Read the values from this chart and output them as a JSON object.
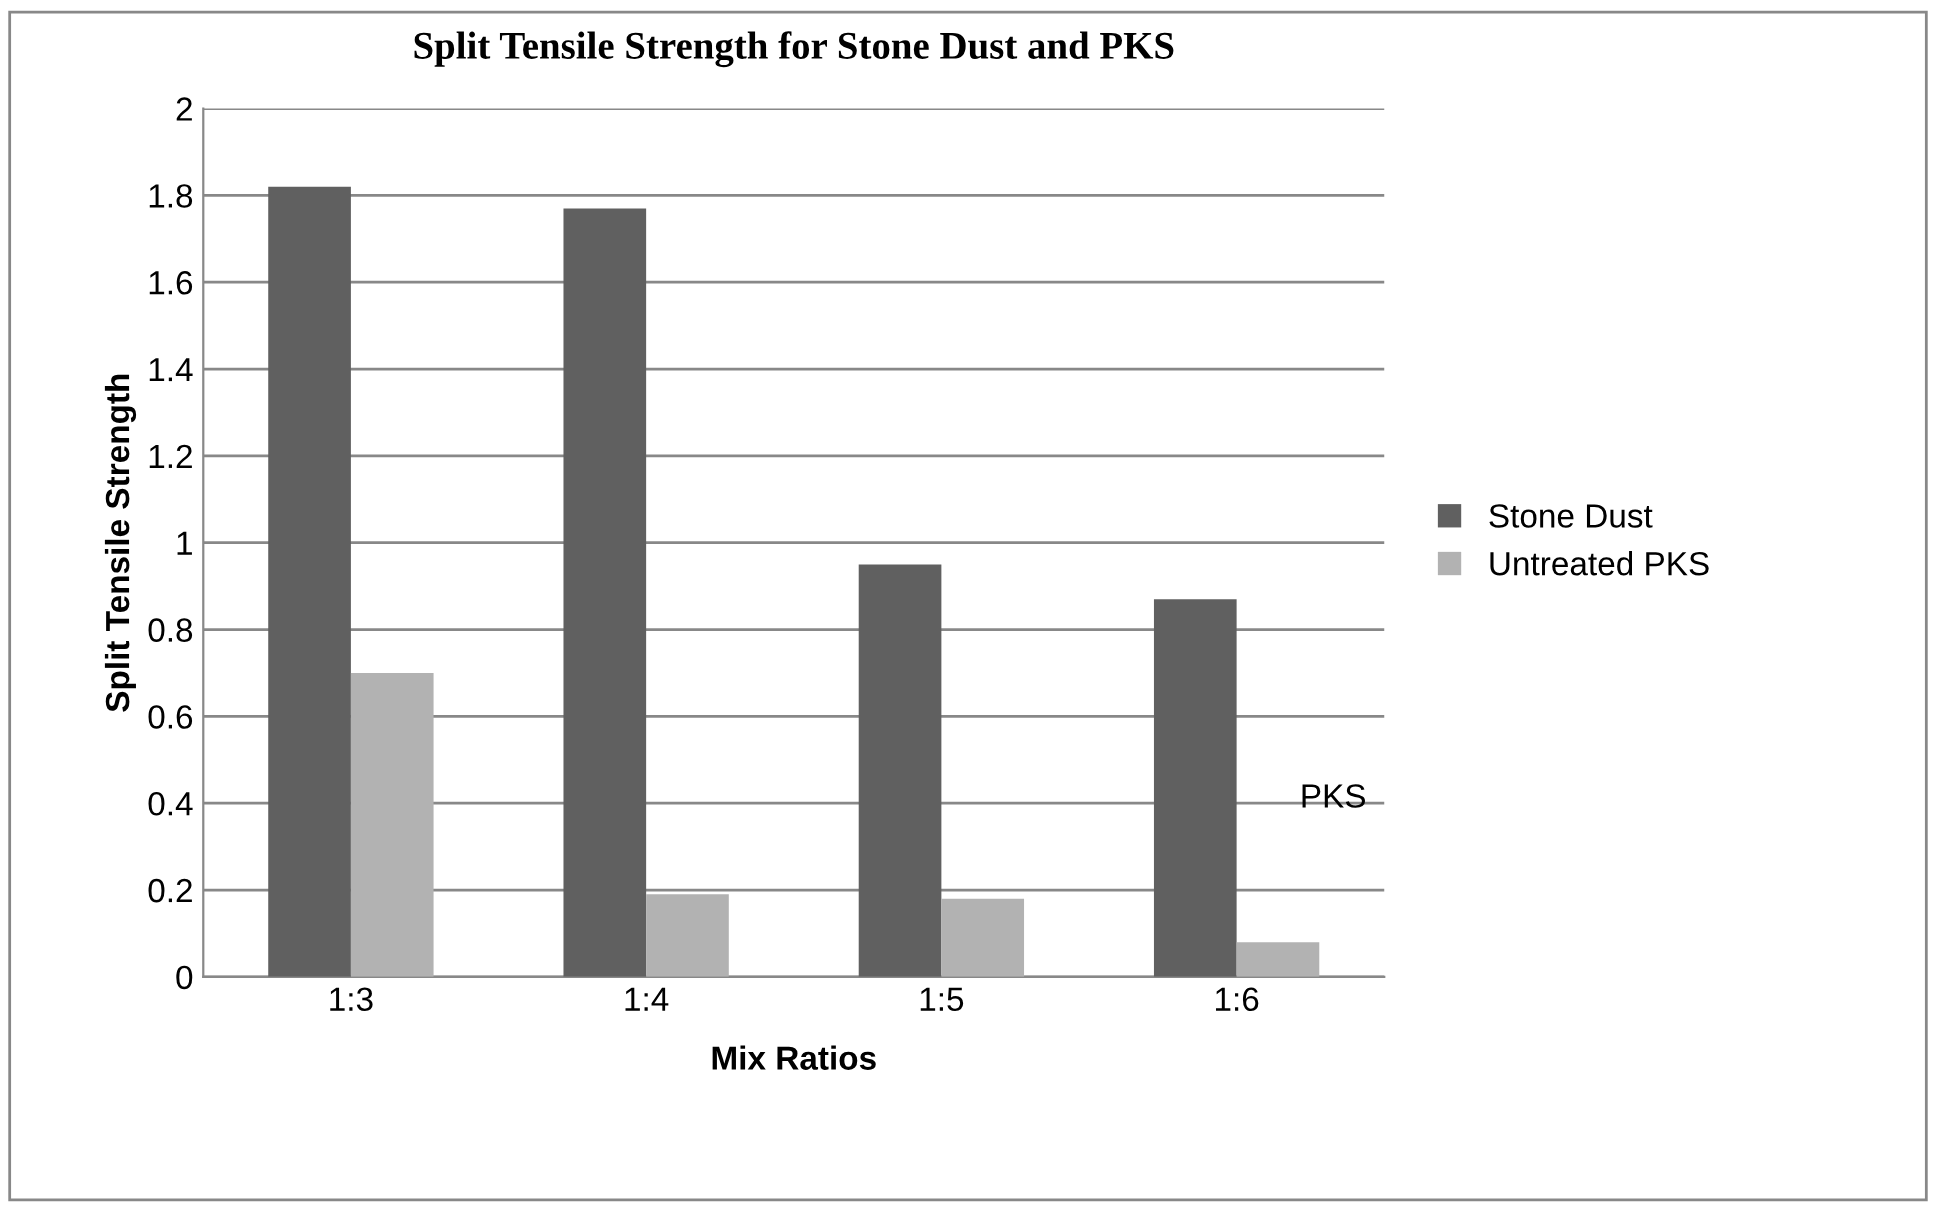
{
  "chart_data": {
    "type": "bar",
    "title": "Split Tensile Strength for Stone Dust and PKS",
    "xlabel": "Mix Ratios",
    "ylabel": "Split Tensile Strength",
    "categories": [
      "1:3",
      "1:4",
      "1:5",
      "1:6"
    ],
    "series": [
      {
        "name": "Stone Dust",
        "color": "#606060",
        "values": [
          1.82,
          1.77,
          0.95,
          0.87
        ]
      },
      {
        "name": "Untreated PKS",
        "color": "#b2b2b2",
        "values": [
          0.7,
          0.19,
          0.18,
          0.08
        ]
      }
    ],
    "ylim": [
      0,
      2
    ],
    "yticks": [
      0,
      0.2,
      0.4,
      0.6,
      0.8,
      1,
      1.2,
      1.4,
      1.6,
      1.8,
      2
    ],
    "grid": "y",
    "legend": "right",
    "annotations": [
      "PKS"
    ]
  }
}
